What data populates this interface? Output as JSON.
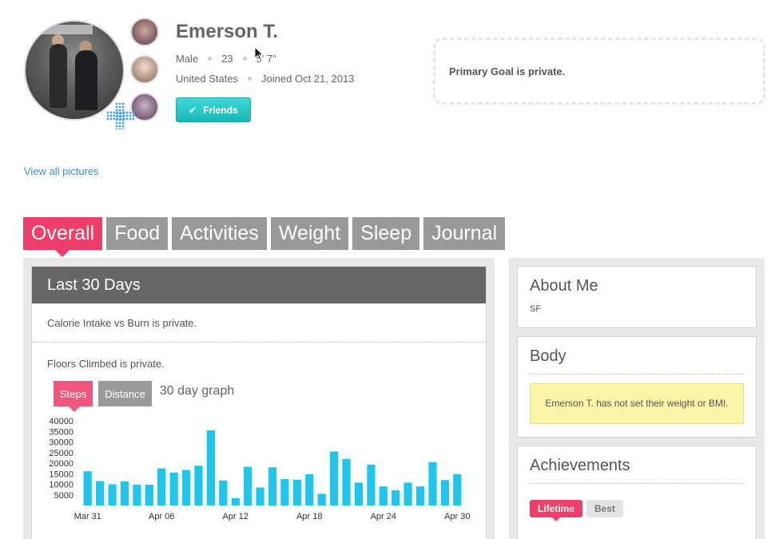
{
  "profile": {
    "name": "Emerson T.",
    "gender": "Male",
    "age": "23",
    "height": "5′ 7″",
    "country": "United States",
    "joined": "Joined Oct 21, 2013",
    "friends_label": "Friends"
  },
  "goal": {
    "text": "Primary Goal is private."
  },
  "pictures": {
    "view_all": "View all pictures"
  },
  "tabs": [
    {
      "label": "Overall",
      "active": true
    },
    {
      "label": "Food"
    },
    {
      "label": "Activities"
    },
    {
      "label": "Weight"
    },
    {
      "label": "Sleep"
    },
    {
      "label": "Journal"
    }
  ],
  "overview": {
    "title": "Last 30 Days",
    "calorie_text": "Calorie Intake vs Burn is private.",
    "floors_text": "Floors Climbed is private.",
    "chart_tabs": [
      {
        "label": "Steps",
        "active": true
      },
      {
        "label": "Distance"
      }
    ],
    "graph_label": "30 day graph"
  },
  "chart_data": {
    "type": "bar",
    "color": "#1ec5ed",
    "ylim": [
      0,
      40000
    ],
    "y_ticks": [
      "40000",
      "35000",
      "30000",
      "25000",
      "20000",
      "15000",
      "10000",
      "5000"
    ],
    "x_tick_labels": [
      "Mar 31",
      "Apr 06",
      "Apr 12",
      "Apr 18",
      "Apr 24",
      "Apr 30"
    ],
    "values": [
      16200,
      11500,
      10000,
      11400,
      9800,
      9800,
      17500,
      15600,
      16800,
      18800,
      35500,
      11800,
      3500,
      18300,
      8500,
      18000,
      12500,
      12200,
      14800,
      5500,
      25500,
      22000,
      10800,
      19300,
      9000,
      7200,
      10800,
      9000,
      20500,
      12000,
      14800
    ]
  },
  "about": {
    "title": "About Me",
    "text": "SF"
  },
  "body_card": {
    "title": "Body",
    "notice": "Emerson T. has not set their weight or BMI."
  },
  "achievements": {
    "title": "Achievements",
    "tabs": [
      {
        "label": "Lifetime",
        "active": true
      },
      {
        "label": "Best"
      }
    ]
  },
  "colors": {
    "accent": "#ef3e6a",
    "teal": "#19b8b7",
    "bar": "#1ec5ed",
    "link": "#3a8fd0"
  }
}
